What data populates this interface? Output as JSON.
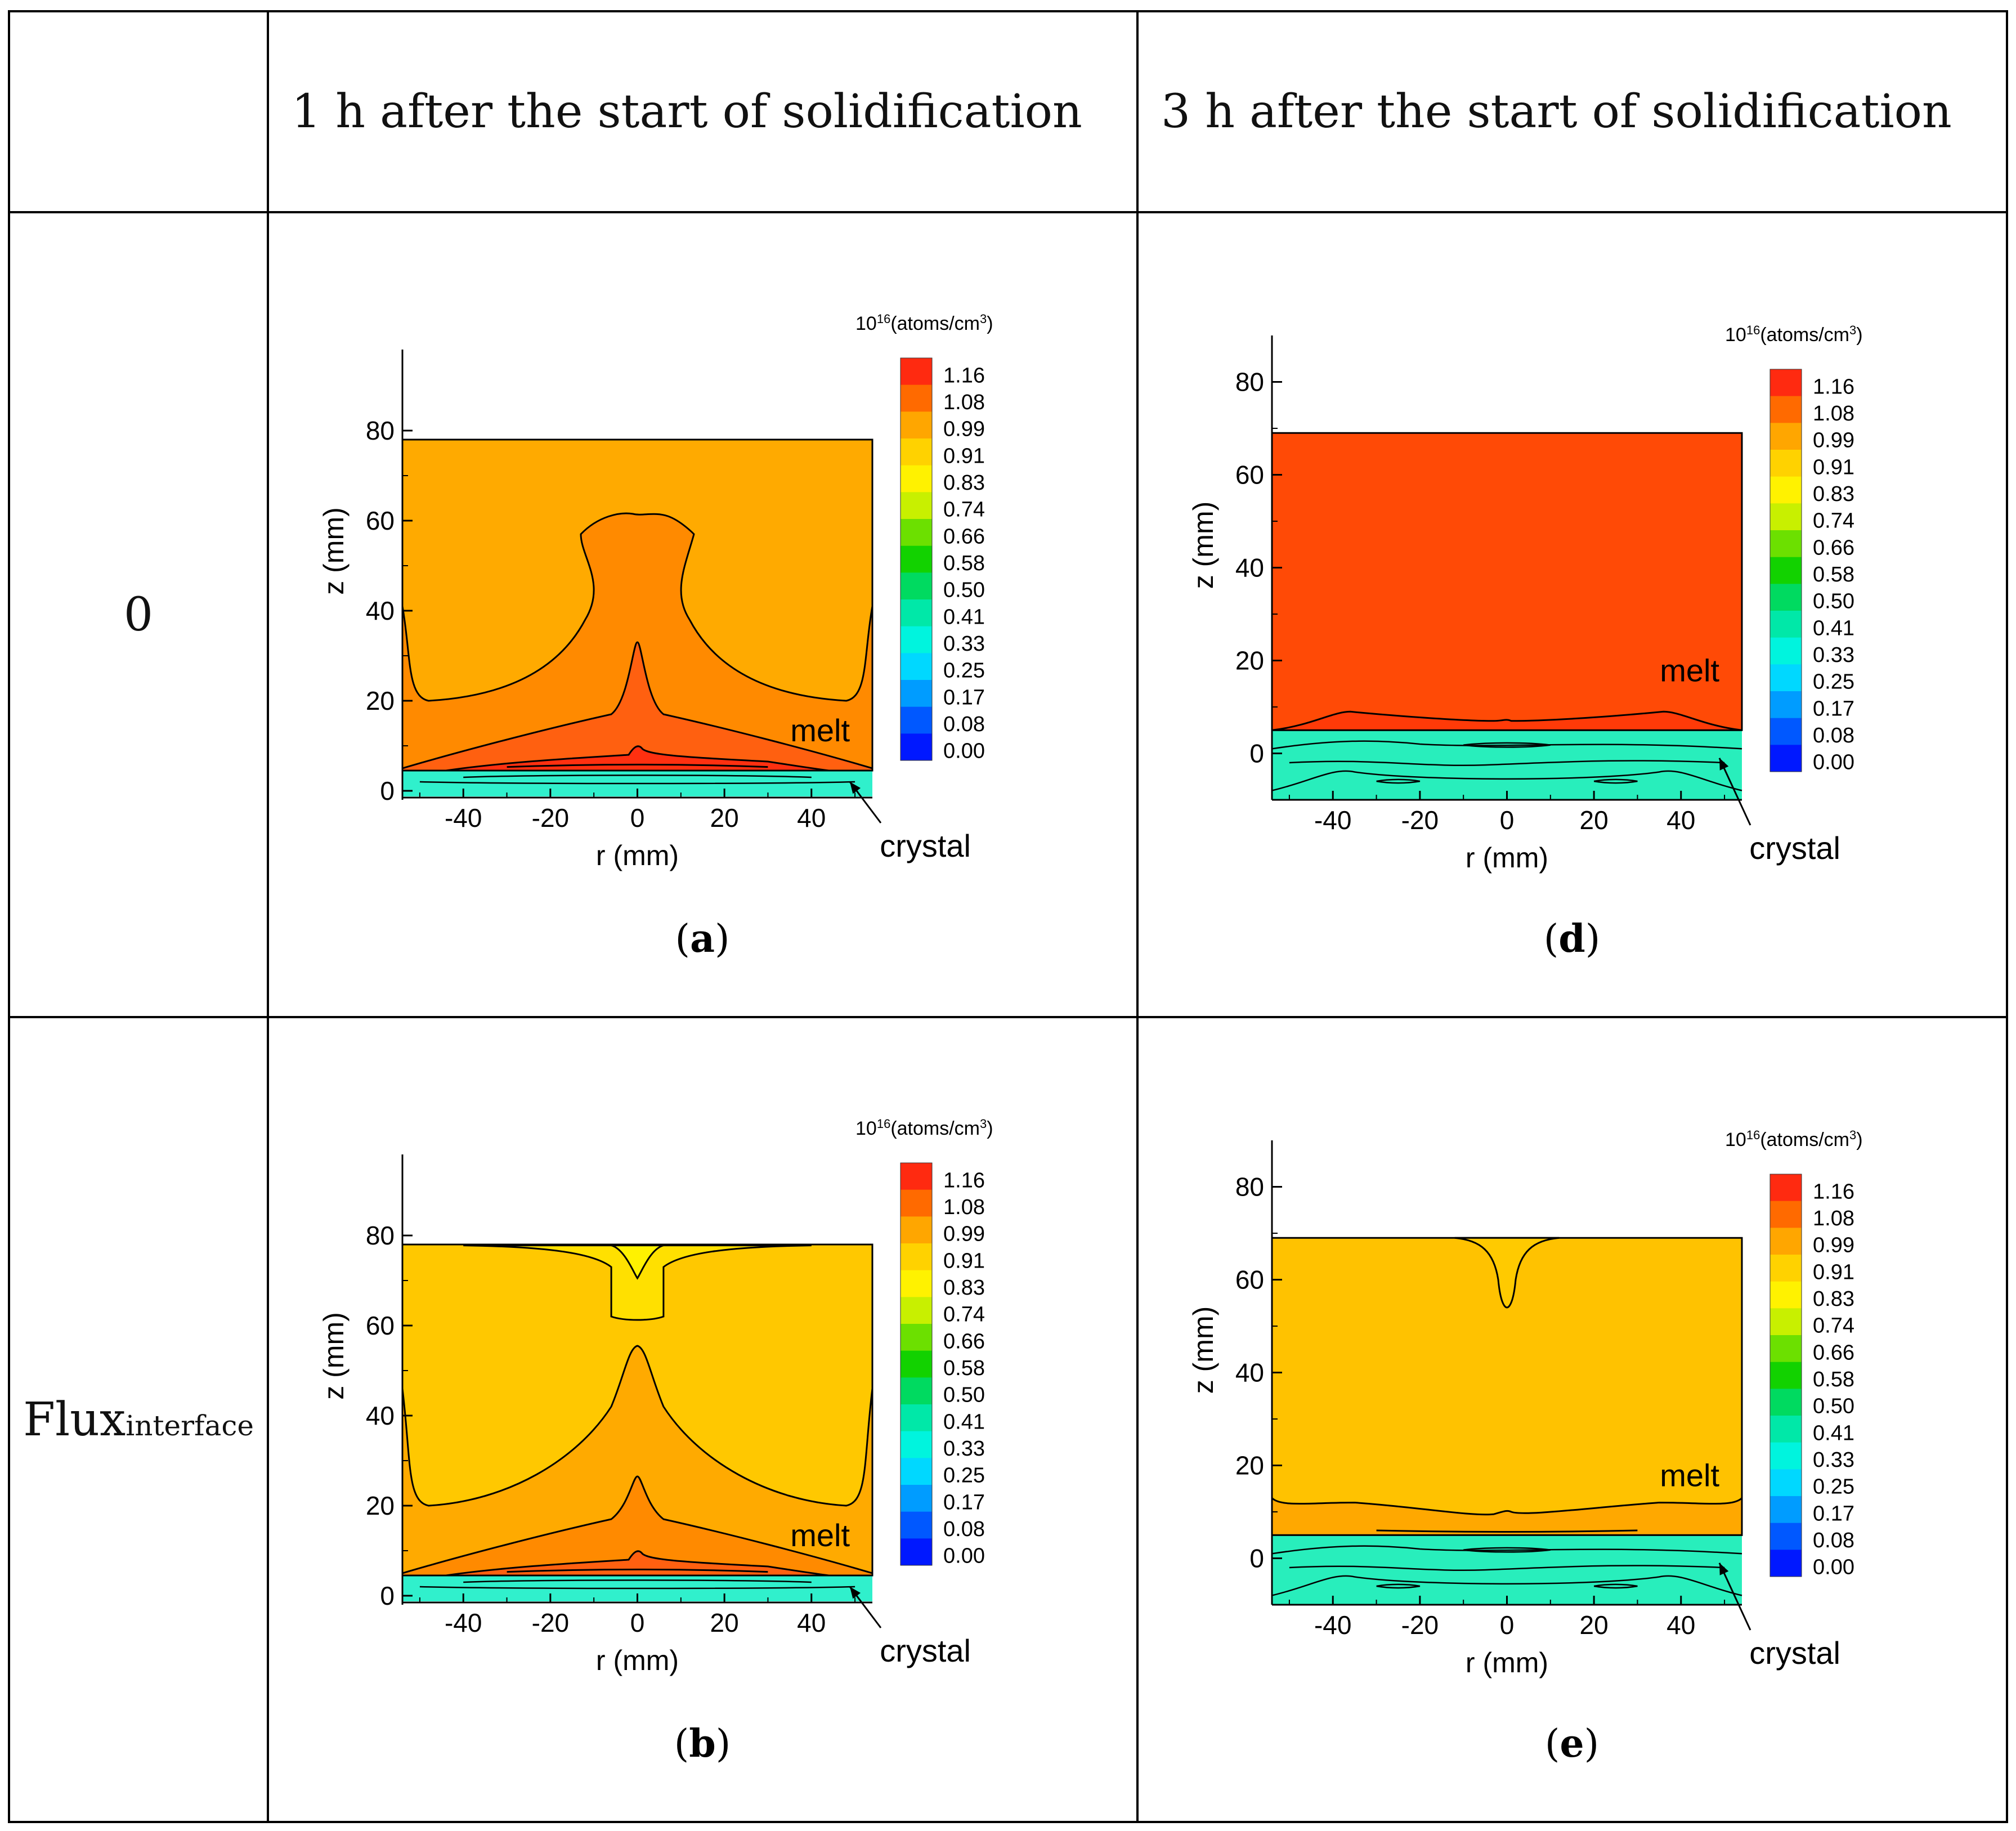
{
  "table": {
    "header_blank": "",
    "col1_header": "1 h after the start of solidification",
    "col2_header": "3 h after the start of solidification",
    "row1_label": "0",
    "row2_label_main": "Flux",
    "row2_label_sub": "interface"
  },
  "common": {
    "xlabel": "r (mm)",
    "ylabel": "z (mm)",
    "unit_base": "10",
    "unit_exp": "16",
    "unit_rest": "(atoms/cm",
    "unit_cube": "3",
    "unit_close": ")",
    "melt_label": "melt",
    "crystal_label": "crystal",
    "colorbar_levels": [
      "1.16",
      "1.08",
      "0.99",
      "0.91",
      "0.83",
      "0.74",
      "0.66",
      "0.58",
      "0.50",
      "0.41",
      "0.33",
      "0.25",
      "0.17",
      "0.08",
      "0.00"
    ],
    "colorbar_colors": [
      "#ff2a10",
      "#ff6a00",
      "#ffa600",
      "#ffd200",
      "#fff200",
      "#c8f000",
      "#6ce000",
      "#12d200",
      "#00da60",
      "#00e8a8",
      "#00f4de",
      "#00d8ff",
      "#009cff",
      "#0058ff",
      "#0018ff"
    ],
    "xticks": [
      "-40",
      "-20",
      "0",
      "20",
      "40"
    ],
    "yticks_1h": [
      "80",
      "60",
      "40",
      "20",
      "0"
    ],
    "yticks_3h": [
      "80",
      "60",
      "40",
      "20",
      "0"
    ]
  },
  "chart_data": [
    {
      "id": "a",
      "type": "heatmap",
      "caption_letter": "a",
      "caption_open": "(",
      "caption_close": ")",
      "xlabel": "r (mm)",
      "ylabel": "z (mm)",
      "xlim": [
        -54,
        54
      ],
      "ylim": [
        -2,
        98
      ],
      "melt_top_z": 78,
      "interface_z": 4.5,
      "colorbar_range": [
        0.0,
        1.16
      ],
      "melt_color": "#ffaa00",
      "crystal_color": "#30f0cc",
      "regions": [
        "outer melt ~0.99",
        "central plume ~1.04",
        "near-interface core ~1.10"
      ]
    },
    {
      "id": "d",
      "type": "heatmap",
      "caption_letter": "d",
      "caption_open": "(",
      "caption_close": ")",
      "xlabel": "r (mm)",
      "ylabel": "z (mm)",
      "xlim": [
        -54,
        54
      ],
      "ylim": [
        -10,
        90
      ],
      "melt_top_z": 69,
      "interface_z": 5,
      "colorbar_range": [
        0.0,
        1.16
      ],
      "melt_color": "#ff4a06",
      "crystal_color": "#28eebc",
      "regions": [
        "melt ~1.13",
        "crystal ~0.35-0.45"
      ]
    },
    {
      "id": "b",
      "type": "heatmap",
      "caption_letter": "b",
      "caption_open": "(",
      "caption_close": ")",
      "xlabel": "r (mm)",
      "ylabel": "z (mm)",
      "xlim": [
        -54,
        54
      ],
      "ylim": [
        -2,
        98
      ],
      "melt_top_z": 78,
      "interface_z": 4.5,
      "colorbar_range": [
        0.0,
        1.16
      ],
      "melt_color": "#ffc800",
      "crystal_color": "#30f0cc",
      "regions": [
        "top dip ~0.93",
        "bulk melt ~0.96",
        "plume ~1.00",
        "near-interface ~1.06"
      ]
    },
    {
      "id": "e",
      "type": "heatmap",
      "caption_letter": "e",
      "caption_open": "(",
      "caption_close": ")",
      "xlabel": "r (mm)",
      "ylabel": "z (mm)",
      "xlim": [
        -54,
        54
      ],
      "ylim": [
        -10,
        90
      ],
      "melt_top_z": 69,
      "interface_z": 5,
      "colorbar_range": [
        0.0,
        1.16
      ],
      "melt_color": "#ffc200",
      "crystal_color": "#28eebc",
      "regions": [
        "bulk melt ~0.96",
        "near-interface layer ~1.00",
        "crystal ~0.35-0.45"
      ]
    }
  ]
}
